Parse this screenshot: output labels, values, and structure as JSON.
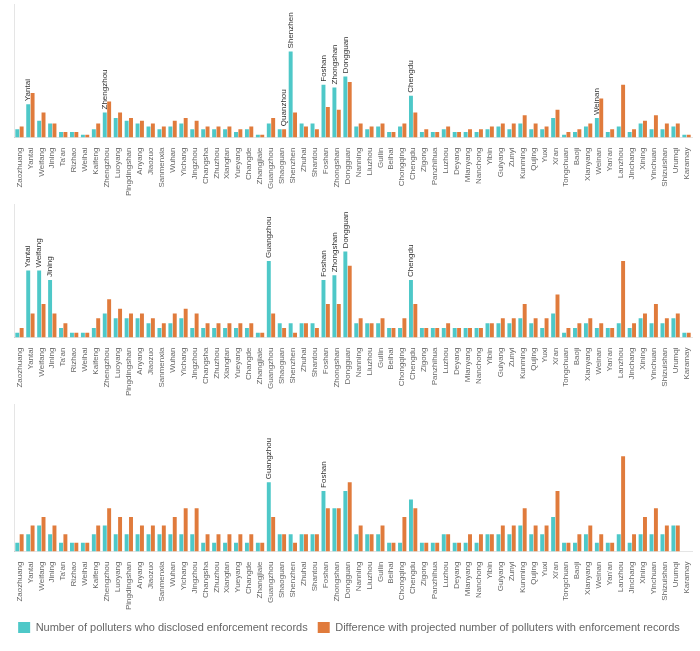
{
  "chart_data": [
    {
      "type": "bar",
      "categories": [
        "Zaozhuang",
        "Yantai",
        "Weifang",
        "Jining",
        "Ta'an",
        "Rizhao",
        "Weihai",
        "Kaifeng",
        "Zhengzhou",
        "Luoyang",
        "Pingdingshan",
        "Anyang",
        "Jiaozuo",
        "Sanmenxia",
        "Wuhan",
        "Yichang",
        "Jingzhou",
        "Changsha",
        "Zhuzhou",
        "Xiangtan",
        "Yueyang",
        "Changde",
        "Zhangjiaie",
        "Guangzhou",
        "Shaoguan",
        "Shenzhen",
        "Zhuhai",
        "Shantou",
        "Foshan",
        "Zhongshan",
        "Dongguan",
        "Nanning",
        "Liuzhou",
        "Guilin",
        "Beihai",
        "Chongqing",
        "Chengdu",
        "Zigong",
        "Panzhihua",
        "Luzhou",
        "Deyang",
        "Mianyang",
        "Nanchong",
        "Yibin",
        "Guiyang",
        "Zunyi",
        "Kunming",
        "Qujing",
        "Yuxi",
        "Xi'an",
        "Tongchuan",
        "Baoji",
        "Xianyang",
        "Weinan",
        "Yan'an",
        "Lanzhou",
        "Jinchang",
        "Xining",
        "Yinchuan",
        "Shizuishan",
        "Urumqi",
        "Karamay"
      ],
      "series": [
        {
          "name": "Number of polluters who disclosed enforcement records",
          "color": "#4EC8C8",
          "values": [
            3,
            12,
            6,
            5,
            2,
            2,
            1,
            3,
            9,
            7,
            6,
            5,
            4,
            3,
            4,
            5,
            3,
            3,
            3,
            3,
            2,
            3,
            1,
            5,
            3,
            31,
            5,
            5,
            19,
            18,
            22,
            4,
            3,
            4,
            2,
            4,
            15,
            2,
            2,
            3,
            2,
            2,
            2,
            3,
            4,
            3,
            5,
            3,
            3,
            7,
            1,
            2,
            4,
            7,
            2,
            4,
            2,
            5,
            3,
            3,
            4,
            1
          ]
        },
        {
          "name": "Difference with projected number of polluters with enforcement records",
          "color": "#E07B3C",
          "values": [
            4,
            16,
            9,
            5,
            2,
            2,
            1,
            5,
            13,
            9,
            7,
            6,
            5,
            4,
            6,
            7,
            6,
            4,
            4,
            4,
            3,
            4,
            1,
            7,
            3,
            9,
            4,
            3,
            11,
            10,
            20,
            5,
            4,
            5,
            2,
            5,
            9,
            3,
            2,
            4,
            2,
            3,
            3,
            4,
            5,
            5,
            8,
            5,
            4,
            10,
            2,
            3,
            5,
            14,
            3,
            19,
            3,
            6,
            8,
            5,
            5,
            1
          ]
        }
      ],
      "ylim": [
        0,
        48.05
      ],
      "grid": false,
      "tick_labels": "x",
      "annotations": [
        {
          "text": "Yantai",
          "category": "Yantai",
          "series": 0
        },
        {
          "text": "Zhengzhou",
          "category": "Zhengzhou",
          "series": 0
        },
        {
          "text": "Quanzhou",
          "category": "Shaoguan",
          "series": 1
        },
        {
          "text": "Shenzhen",
          "category": "Shenzhen",
          "series": 0
        },
        {
          "text": "Foshan",
          "category": "Foshan",
          "series": 0
        },
        {
          "text": "Zhongshan",
          "category": "Zhongshan",
          "series": 0
        },
        {
          "text": "Dongguan",
          "category": "Dongguan",
          "series": 0
        },
        {
          "text": "Chengdu",
          "category": "Chengdu",
          "series": 0
        },
        {
          "text": "Weinan",
          "category": "Weinan",
          "series": 0
        }
      ]
    },
    {
      "type": "bar",
      "categories": [
        "Zaozhuang",
        "Yantai",
        "Weifang",
        "Jining",
        "Ta'an",
        "Rizhao",
        "Weihai",
        "Kaifeng",
        "Zhengzhou",
        "Luoyang",
        "Pingdingshan",
        "Anyang",
        "Jiaozuo",
        "Sanmenxia",
        "Wuhan",
        "Yichang",
        "Jingzhou",
        "Changsha",
        "Zhuzhou",
        "Xiangtan",
        "Yueyang",
        "Changde",
        "Zhangjiaie",
        "Guangzhou",
        "Shaoguan",
        "Shenzhen",
        "Zhuhai",
        "Shantou",
        "Foshan",
        "Zhongshan",
        "Dongguan",
        "Nanning",
        "Liuzhou",
        "Guilin",
        "Beihai",
        "Chongqing",
        "Chengdu",
        "Zigong",
        "Panzhihua",
        "Luzhou",
        "Deyang",
        "Mianyang",
        "Nanchong",
        "Yibin",
        "Guiyang",
        "Zunyi",
        "Kunming",
        "Qujing",
        "Yuxi",
        "Xi'an",
        "Tongchuan",
        "Baoji",
        "Xianyang",
        "Weinan",
        "Yan'an",
        "Lanzhou",
        "Jinchang",
        "Xining",
        "Yinchuan",
        "Shizuishan",
        "Urumqi",
        "Karamay"
      ],
      "series": [
        {
          "name": "Number of polluters who disclosed enforcement records",
          "color": "#4EC8C8",
          "values": [
            1,
            14,
            14,
            12,
            2,
            1,
            1,
            2,
            5,
            4,
            4,
            4,
            3,
            2,
            3,
            4,
            2,
            2,
            2,
            2,
            2,
            2,
            1,
            16,
            3,
            3,
            3,
            3,
            12,
            13,
            18,
            3,
            3,
            3,
            2,
            2,
            12,
            2,
            2,
            2,
            2,
            2,
            2,
            3,
            3,
            3,
            4,
            3,
            2,
            5,
            1,
            2,
            3,
            2,
            2,
            3,
            2,
            4,
            3,
            3,
            4,
            1
          ]
        },
        {
          "name": "Difference with projected number of polluters with enforcement records",
          "color": "#E07B3C",
          "values": [
            2,
            5,
            7,
            5,
            3,
            1,
            1,
            4,
            8,
            6,
            5,
            5,
            4,
            3,
            5,
            6,
            5,
            3,
            3,
            3,
            3,
            3,
            1,
            5,
            2,
            1,
            3,
            2,
            7,
            7,
            15,
            4,
            3,
            4,
            2,
            4,
            7,
            2,
            2,
            3,
            2,
            2,
            2,
            3,
            4,
            4,
            7,
            4,
            4,
            9,
            2,
            3,
            4,
            3,
            2,
            16,
            3,
            5,
            7,
            4,
            5,
            1
          ]
        }
      ],
      "ylim": [
        0,
        27.9
      ],
      "grid": false,
      "tick_labels": "x",
      "annotations": [
        {
          "text": "Yantai",
          "category": "Yantai",
          "series": 0
        },
        {
          "text": "Weifang",
          "category": "Weifang",
          "series": 0
        },
        {
          "text": "Jining",
          "category": "Jining",
          "series": 0
        },
        {
          "text": "Guangzhou",
          "category": "Guangzhou",
          "series": 0
        },
        {
          "text": "Foshan",
          "category": "Foshan",
          "series": 0
        },
        {
          "text": "Zhongshan",
          "category": "Zhongshan",
          "series": 0
        },
        {
          "text": "Dongguan",
          "category": "Dongguan",
          "series": 0
        },
        {
          "text": "Chengdu",
          "category": "Chengdu",
          "series": 0
        }
      ]
    },
    {
      "type": "bar",
      "categories": [
        "Zaozhuang",
        "Yantai",
        "Weifang",
        "Jining",
        "Ta'an",
        "Rizhao",
        "Weihai",
        "Kaifeng",
        "Zhengzhou",
        "Luoyang",
        "Pingdingshan",
        "Anyang",
        "Jiaozuo",
        "Sanmenxia",
        "Wuhan",
        "Yichang",
        "Jingzhou",
        "Changsha",
        "Zhuzhou",
        "Xiangtan",
        "Yueyang",
        "Changde",
        "Zhangjiaie",
        "Guangzhou",
        "Shaoguan",
        "Shenzhen",
        "Zhuhai",
        "Shantou",
        "Foshan",
        "Zhongshan",
        "Dongguan",
        "Nanning",
        "Liuzhou",
        "Guilin",
        "Beihai",
        "Chongqing",
        "Chengdu",
        "Zigong",
        "Panzhihua",
        "Luzhou",
        "Deyang",
        "Mianyang",
        "Nanchong",
        "Yibin",
        "Guiyang",
        "Zunyi",
        "Kunming",
        "Qujing",
        "Yuxi",
        "Xi'an",
        "Tongchuan",
        "Baoji",
        "Xianyang",
        "Weinan",
        "Yan'an",
        "Lanzhou",
        "Jinchang",
        "Xining",
        "Yinchuan",
        "Shizuishan",
        "Urumqi",
        "Karamay"
      ],
      "series": [
        {
          "name": "Number of polluters who disclosed enforcement records",
          "color": "#4EC8C8",
          "values": [
            1,
            2,
            3,
            2,
            1,
            1,
            1,
            2,
            3,
            2,
            2,
            2,
            2,
            2,
            2,
            2,
            2,
            1,
            1,
            1,
            1,
            1,
            1,
            8,
            2,
            2,
            2,
            2,
            7,
            5,
            7,
            2,
            2,
            2,
            1,
            1,
            6,
            1,
            1,
            2,
            1,
            1,
            1,
            2,
            2,
            2,
            3,
            2,
            2,
            4,
            1,
            1,
            2,
            1,
            1,
            2,
            1,
            2,
            2,
            2,
            3,
            0
          ]
        },
        {
          "name": "Difference with projected number of polluters with enforcement records",
          "color": "#E07B3C",
          "values": [
            2,
            3,
            4,
            3,
            2,
            1,
            1,
            3,
            5,
            4,
            4,
            3,
            3,
            3,
            4,
            5,
            5,
            2,
            2,
            2,
            2,
            2,
            1,
            4,
            2,
            1,
            2,
            2,
            5,
            5,
            8,
            3,
            2,
            3,
            1,
            4,
            5,
            1,
            1,
            2,
            1,
            2,
            2,
            2,
            3,
            3,
            5,
            3,
            3,
            7,
            1,
            2,
            3,
            2,
            1,
            11,
            2,
            4,
            5,
            3,
            3,
            0
          ]
        }
      ],
      "ylim": [
        0,
        17.05
      ],
      "grid": false,
      "tick_labels": "x",
      "legend": "bottom",
      "annotations": [
        {
          "text": "Guangzhou",
          "category": "Guangzhou",
          "series": 0
        },
        {
          "text": "Foshan",
          "category": "Foshan",
          "series": 0
        }
      ]
    }
  ]
}
